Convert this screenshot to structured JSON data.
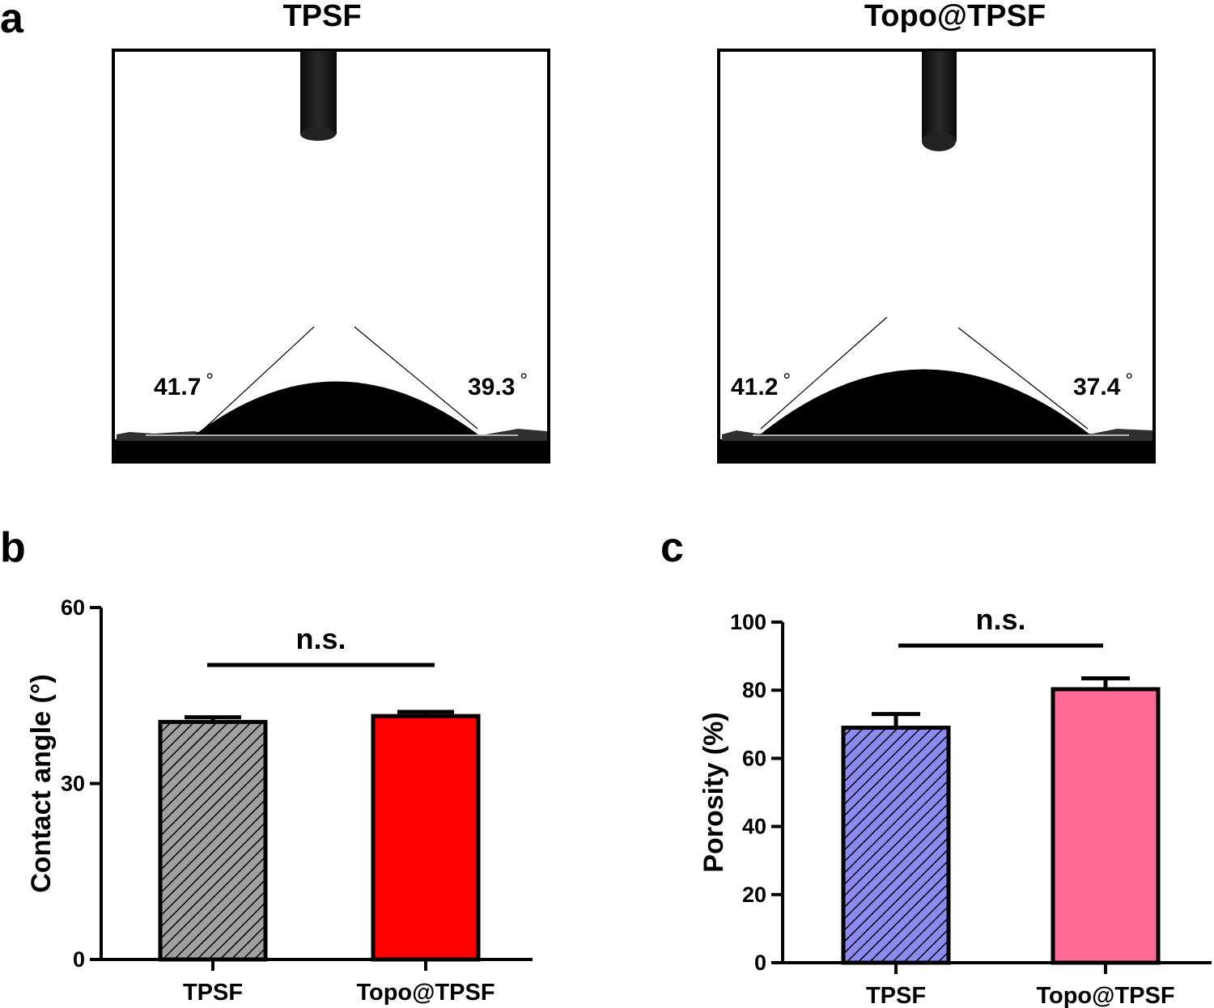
{
  "panel_a": {
    "letter": "a",
    "images": [
      {
        "title": "TPSF",
        "left_angle": "41.7",
        "right_angle": "39.3",
        "degree": "°"
      },
      {
        "title": "Topo@TPSF",
        "left_angle": "41.2",
        "right_angle": "37.4",
        "degree": "°"
      }
    ]
  },
  "chart_data": [
    {
      "type": "bar",
      "panel": "b",
      "title": "",
      "xlabel": "",
      "ylabel": "Contact angle (°)",
      "ylim": [
        0,
        60
      ],
      "yticks": [
        0,
        30,
        60
      ],
      "categories": [
        "TPSF",
        "Topo@TPSF"
      ],
      "values": [
        40.5,
        41.5
      ],
      "errors": [
        0.8,
        0.7
      ],
      "colors": [
        "#a0a0a0",
        "#ff0000"
      ],
      "hatched": [
        true,
        false
      ],
      "annotation": "n.s."
    },
    {
      "type": "bar",
      "panel": "c",
      "title": "",
      "xlabel": "",
      "ylabel": "Porosity (%)",
      "ylim": [
        0,
        100
      ],
      "yticks": [
        0,
        20,
        40,
        60,
        80,
        100
      ],
      "categories": [
        "TPSF",
        "Topo@TPSF"
      ],
      "values": [
        69,
        80.3
      ],
      "errors": [
        4,
        3.2
      ],
      "colors": [
        "#8a8af0",
        "#ff6b94"
      ],
      "hatched": [
        true,
        false
      ],
      "annotation": "n.s."
    }
  ]
}
